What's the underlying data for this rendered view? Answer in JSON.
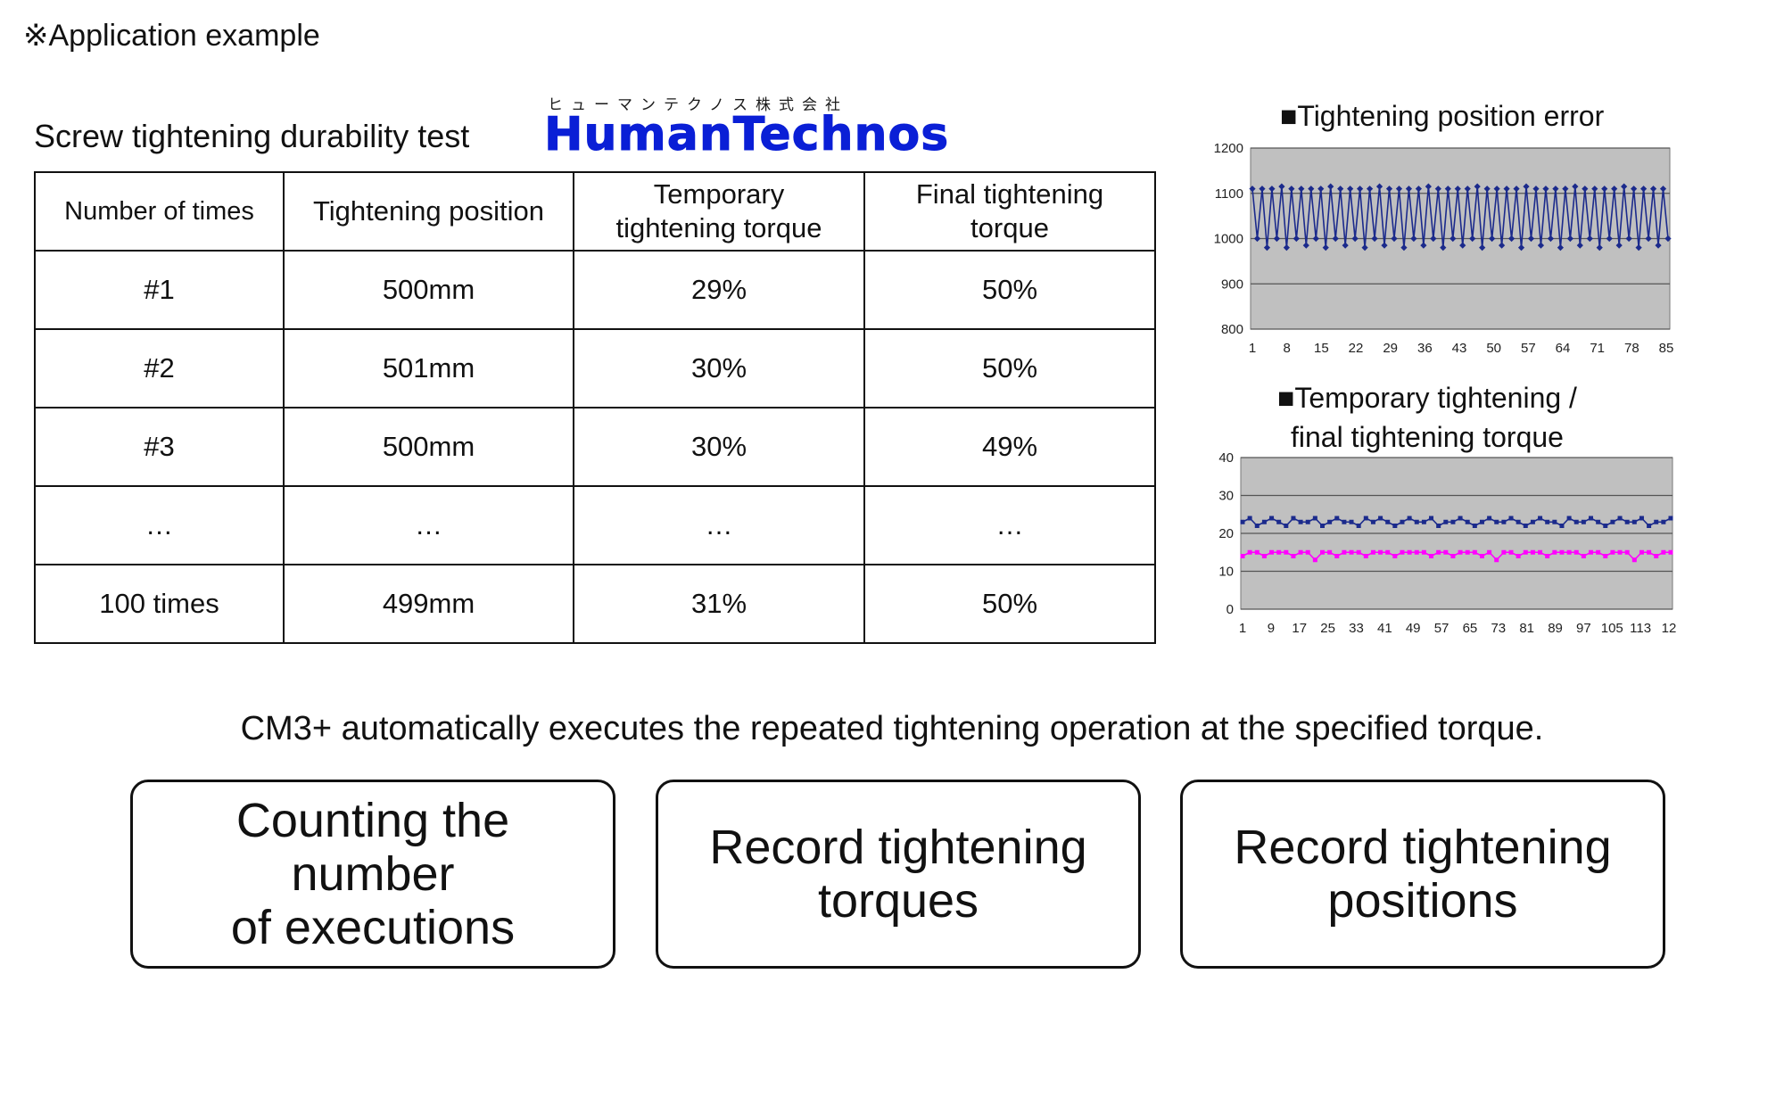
{
  "note": "※Application example",
  "section_title": "Screw tightening durability test",
  "logo": {
    "kana": "ヒューマンテクノス株式会社",
    "brand": "HumanTechnos"
  },
  "table": {
    "headers": [
      "Number of times",
      "Tightening position",
      "Temporary tightening torque",
      "Final tightening torque"
    ],
    "rows": [
      [
        "#1",
        "500mm",
        "29%",
        "50%"
      ],
      [
        "#2",
        "501mm",
        "30%",
        "50%"
      ],
      [
        "#3",
        "500mm",
        "30%",
        "49%"
      ],
      [
        "…",
        "…",
        "…",
        "…"
      ],
      [
        "100 times",
        "499mm",
        "31%",
        "50%"
      ]
    ]
  },
  "chart_data": [
    {
      "type": "line",
      "title": "■Tightening position error",
      "ylim": [
        800,
        1200
      ],
      "yticks": [
        "1200",
        "1100",
        "1000",
        "900",
        "800"
      ],
      "xticks": [
        "1",
        "8",
        "15",
        "22",
        "29",
        "36",
        "43",
        "50",
        "57",
        "64",
        "71",
        "78",
        "85"
      ],
      "grid": true,
      "series": [
        {
          "color": "#1b2a8c",
          "values": [
            1110,
            1000,
            1110,
            980,
            1110,
            1000,
            1115,
            980,
            1110,
            1000,
            1110,
            985,
            1110,
            1000,
            1110,
            980,
            1115,
            1000,
            1110,
            985,
            1110,
            1000,
            1110,
            980,
            1110,
            1000,
            1115,
            985,
            1110,
            1000,
            1110,
            980,
            1110,
            1000,
            1110,
            985,
            1115,
            1000,
            1110,
            980,
            1110,
            1000,
            1110,
            985,
            1110,
            1000,
            1115,
            980,
            1110,
            1000,
            1110,
            985,
            1110,
            1000,
            1110,
            980,
            1115,
            1000,
            1110,
            985,
            1110,
            1000,
            1110,
            980,
            1110,
            1000,
            1115,
            985,
            1110,
            1000,
            1110,
            980,
            1110,
            1000,
            1110,
            985,
            1115,
            1000,
            1110,
            980,
            1110,
            1000,
            1110,
            985,
            1110,
            1000
          ]
        }
      ]
    },
    {
      "type": "line",
      "title_line1": "■Temporary tightening /",
      "title_line2": "final tightening torque",
      "ylim": [
        0,
        40
      ],
      "yticks": [
        "40",
        "30",
        "20",
        "10",
        "0"
      ],
      "xticks": [
        "1",
        "9",
        "17",
        "25",
        "33",
        "41",
        "49",
        "57",
        "65",
        "73",
        "81",
        "89",
        "97",
        "105",
        "113",
        "12"
      ],
      "grid": true,
      "series": [
        {
          "color": "#1b2a8c",
          "values": [
            23,
            24,
            22,
            23,
            24,
            23,
            22,
            24,
            23,
            23,
            24,
            22,
            23,
            24,
            23,
            23,
            22,
            24,
            23,
            24,
            23,
            22,
            23,
            24,
            23,
            23,
            24,
            22,
            23,
            23,
            24,
            23,
            22,
            23,
            24,
            23,
            23,
            24,
            23,
            22,
            23,
            24,
            23,
            23,
            22,
            24,
            23,
            23,
            24,
            23,
            22,
            23,
            24,
            23,
            23,
            24,
            22,
            23,
            23,
            24
          ]
        },
        {
          "color": "#ff00ff",
          "values": [
            14,
            15,
            15,
            14,
            15,
            15,
            15,
            14,
            15,
            15,
            13,
            15,
            15,
            14,
            15,
            15,
            15,
            14,
            15,
            15,
            15,
            14,
            15,
            15,
            15,
            15,
            14,
            15,
            15,
            14,
            15,
            15,
            15,
            14,
            15,
            13,
            15,
            15,
            14,
            15,
            15,
            15,
            14,
            15,
            15,
            15,
            15,
            14,
            15,
            15,
            14,
            15,
            15,
            15,
            13,
            15,
            15,
            14,
            15,
            15
          ]
        }
      ]
    }
  ],
  "summary": "CM3+ automatically executes the repeated tightening operation at the specified torque.",
  "boxes": [
    {
      "line1": "Counting the",
      "line2": "number",
      "line3": "of executions"
    },
    {
      "line1": "Record tightening",
      "line2": "torques"
    },
    {
      "line1": "Record tightening",
      "line2": "positions"
    }
  ]
}
